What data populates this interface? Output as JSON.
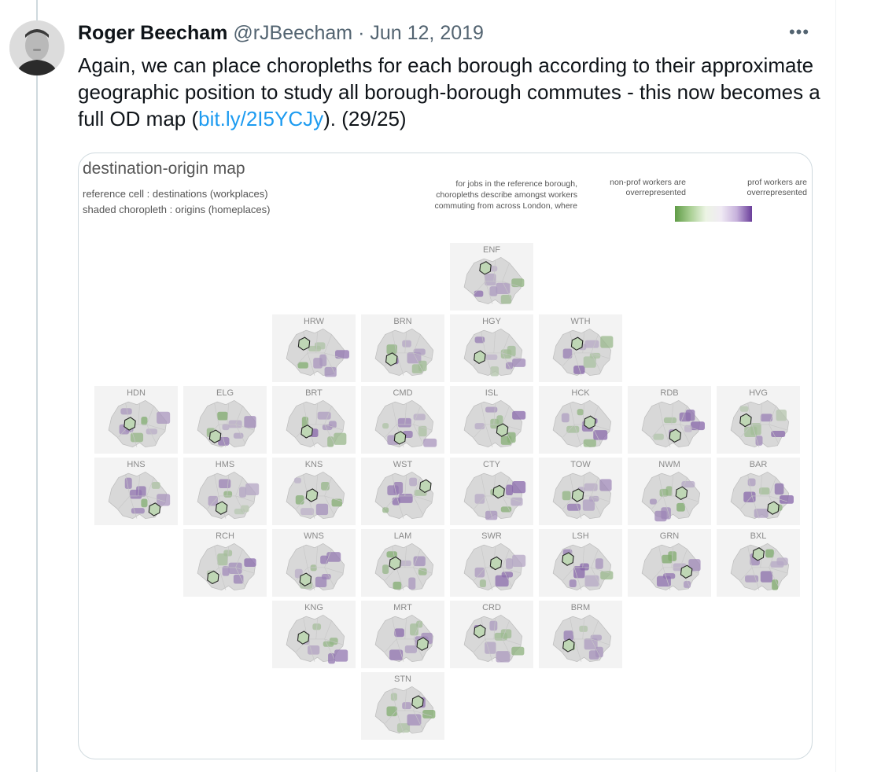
{
  "tweet": {
    "display_name": "Roger Beecham",
    "handle": "@rJBeecham",
    "separator": "·",
    "date": "Jun 12, 2019",
    "more_label": "•••",
    "text_before_link": "Again, we can place choropleths for each borough according to their approximate geographic position to study all borough-borough commutes - this now becomes a full OD map (",
    "link_text": "bit.ly/2I5YCJy",
    "text_after_link": "). (29/25)"
  },
  "map": {
    "title": "destination-origin map",
    "subtitle_line1": "reference cell : destinations (workplaces)",
    "subtitle_line2": "shaded choropleth : origins (homeplaces)",
    "legend_description_line1": "for jobs in the reference borough,",
    "legend_description_line2": "choropleths describe amongst workers",
    "legend_description_line3": "commuting from across London, where",
    "legend_left_line1": "non-prof workers are",
    "legend_left_line2": "overrepresented",
    "legend_right_line1": "prof workers are",
    "legend_right_line2": "overrepresented",
    "colors": {
      "nonprof": "#5f9b46",
      "neutral": "#d8d8d8",
      "prof": "#6a3e9a"
    },
    "cells": [
      {
        "code": "ENF",
        "col": 4,
        "row": 0
      },
      {
        "code": "HRW",
        "col": 2,
        "row": 1
      },
      {
        "code": "BRN",
        "col": 3,
        "row": 1
      },
      {
        "code": "HGY",
        "col": 4,
        "row": 1
      },
      {
        "code": "WTH",
        "col": 5,
        "row": 1
      },
      {
        "code": "HDN",
        "col": 0,
        "row": 2
      },
      {
        "code": "ELG",
        "col": 1,
        "row": 2
      },
      {
        "code": "BRT",
        "col": 2,
        "row": 2
      },
      {
        "code": "CMD",
        "col": 3,
        "row": 2
      },
      {
        "code": "ISL",
        "col": 4,
        "row": 2
      },
      {
        "code": "HCK",
        "col": 5,
        "row": 2
      },
      {
        "code": "RDB",
        "col": 6,
        "row": 2
      },
      {
        "code": "HVG",
        "col": 7,
        "row": 2
      },
      {
        "code": "HNS",
        "col": 0,
        "row": 3
      },
      {
        "code": "HMS",
        "col": 1,
        "row": 3
      },
      {
        "code": "KNS",
        "col": 2,
        "row": 3
      },
      {
        "code": "WST",
        "col": 3,
        "row": 3
      },
      {
        "code": "CTY",
        "col": 4,
        "row": 3
      },
      {
        "code": "TOW",
        "col": 5,
        "row": 3
      },
      {
        "code": "NWM",
        "col": 6,
        "row": 3
      },
      {
        "code": "BAR",
        "col": 7,
        "row": 3
      },
      {
        "code": "RCH",
        "col": 1,
        "row": 4
      },
      {
        "code": "WNS",
        "col": 2,
        "row": 4
      },
      {
        "code": "LAM",
        "col": 3,
        "row": 4
      },
      {
        "code": "SWR",
        "col": 4,
        "row": 4
      },
      {
        "code": "LSH",
        "col": 5,
        "row": 4
      },
      {
        "code": "GRN",
        "col": 6,
        "row": 4
      },
      {
        "code": "BXL",
        "col": 7,
        "row": 4
      },
      {
        "code": "KNG",
        "col": 2,
        "row": 5
      },
      {
        "code": "MRT",
        "col": 3,
        "row": 5
      },
      {
        "code": "CRD",
        "col": 4,
        "row": 5
      },
      {
        "code": "BRM",
        "col": 5,
        "row": 5
      },
      {
        "code": "STN",
        "col": 3,
        "row": 6
      }
    ]
  }
}
